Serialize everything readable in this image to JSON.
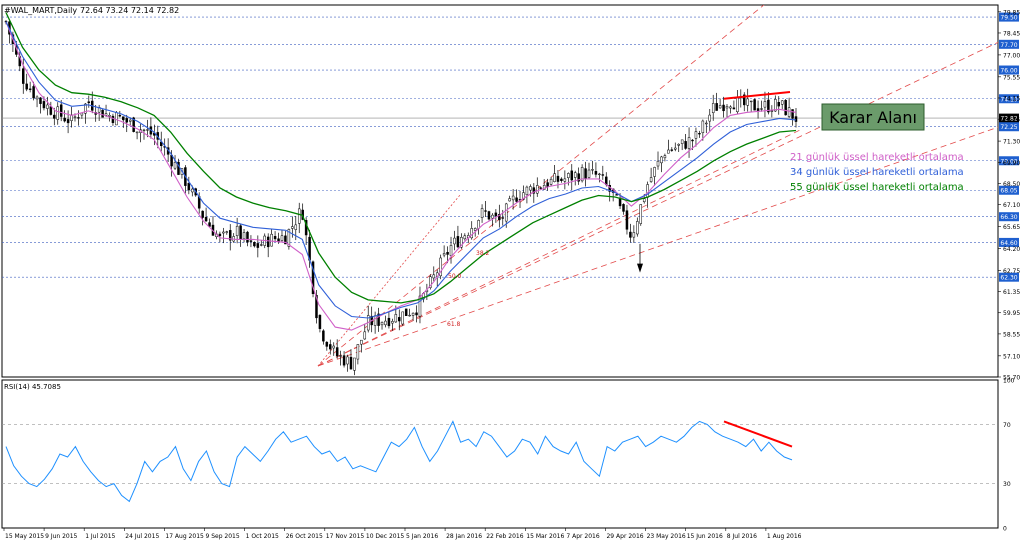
{
  "header": {
    "title": "#WAL_MART,Daily",
    "ohlc": "72.64 73.24 72.14 72.82"
  },
  "rsi_label": "RSI(14) 45.7085",
  "annotation_box": "Karar Alanı",
  "legend": [
    {
      "text": "21 günlük üssel hareketli ortalama",
      "color": "#d060c8"
    },
    {
      "text": "34 günlük üssel hareketli ortalama",
      "color": "#3060d8"
    },
    {
      "text": "55 günlük üssel hareketli ortalama",
      "color": "#008000"
    }
  ],
  "fib_labels": [
    "38.2",
    "50.0",
    "61.8"
  ],
  "chart_data": [
    {
      "type": "candlestick",
      "price_axis_ticks": [
        "79.85",
        "78.45",
        "77.00",
        "75.55",
        "74.15",
        "72.75",
        "71.30",
        "69.90",
        "68.50",
        "67.10",
        "65.65",
        "64.20",
        "62.75",
        "61.35",
        "59.95",
        "58.55",
        "57.10",
        "55.70"
      ],
      "highlighted_levels": [
        "79.50",
        "77.70",
        "76.00",
        "74.10",
        "72.82",
        "72.25",
        "70.00",
        "68.05",
        "66.30",
        "64.60",
        "62.30"
      ],
      "current_price": "72.82",
      "ylim": [
        55.7,
        80.3
      ],
      "date_axis_labels": [
        "15 May 2015",
        "9 Jun 2015",
        "1 Jul 2015",
        "24 Jul 2015",
        "17 Aug 2015",
        "9 Sep 2015",
        "1 Oct 2015",
        "26 Oct 2015",
        "17 Nov 2015",
        "10 Dec 2015",
        "5 Jan 2016",
        "28 Jan 2016",
        "22 Feb 2016",
        "15 Mar 2016",
        "7 Apr 2016",
        "29 Apr 2016",
        "23 May 2016",
        "15 Jun 2016",
        "8 Jul 2016",
        "1 Aug 2016"
      ],
      "close_series": [
        79.2,
        75.5,
        74.0,
        73.2,
        72.6,
        73.9,
        73.1,
        72.8,
        72.2,
        71.7,
        70.2,
        68.5,
        66.3,
        64.8,
        65.3,
        64.2,
        64.8,
        65.0,
        66.8,
        59.0,
        57.2,
        56.6,
        59.3,
        59.5,
        59.8,
        60.3,
        62.3,
        64.3,
        65.3,
        66.6,
        66.0,
        67.7,
        68.2,
        68.6,
        68.8,
        69.2,
        69.0,
        67.5,
        65.0,
        68.5,
        70.6,
        71.0,
        71.6,
        73.5,
        74.0,
        73.6,
        73.6,
        73.7,
        72.82
      ],
      "series": [
        {
          "name": "21 günlük üssel hareketli ortalama",
          "values": [
            79.2,
            76.4,
            74.5,
            73.3,
            73.0,
            73.3,
            73.0,
            72.6,
            72.1,
            71.4,
            69.5,
            67.6,
            66.0,
            64.9,
            64.8,
            64.8,
            64.7,
            64.6,
            63.8,
            60.5,
            59.0,
            58.8,
            59.3,
            59.9,
            60.4,
            60.8,
            62.0,
            63.6,
            64.8,
            65.8,
            66.4,
            67.2,
            67.9,
            68.3,
            68.5,
            68.8,
            68.8,
            68.0,
            67.0,
            67.9,
            69.1,
            70.2,
            71.1,
            72.2,
            73.0,
            73.2,
            73.3,
            73.4,
            73.2
          ]
        },
        {
          "name": "34 günlük üssel hareketli ortalama",
          "values": [
            79.2,
            76.9,
            75.2,
            74.0,
            73.6,
            73.7,
            73.4,
            73.1,
            72.6,
            71.9,
            70.5,
            68.8,
            67.2,
            66.2,
            65.9,
            65.6,
            65.5,
            65.4,
            64.8,
            61.8,
            60.4,
            59.7,
            59.6,
            59.9,
            60.3,
            60.6,
            61.4,
            62.7,
            63.8,
            64.9,
            65.5,
            66.3,
            67.0,
            67.5,
            67.8,
            68.2,
            68.3,
            67.9,
            67.3,
            67.8,
            68.6,
            69.4,
            70.2,
            71.1,
            71.9,
            72.4,
            72.6,
            72.8,
            72.7
          ]
        },
        {
          "name": "55 günlük üssel hareketli ortalama",
          "values": [
            79.8,
            77.5,
            76.0,
            75.0,
            74.5,
            74.4,
            74.2,
            73.9,
            73.5,
            73.0,
            71.9,
            70.5,
            69.3,
            68.2,
            67.6,
            67.2,
            66.9,
            66.7,
            66.4,
            63.9,
            62.3,
            61.3,
            60.8,
            60.7,
            60.6,
            60.8,
            61.2,
            62.0,
            62.9,
            63.8,
            64.5,
            65.2,
            65.9,
            66.4,
            66.9,
            67.4,
            67.7,
            67.6,
            67.3,
            67.6,
            68.1,
            68.7,
            69.3,
            70.0,
            70.6,
            71.1,
            71.5,
            71.9,
            72.0
          ]
        }
      ]
    },
    {
      "type": "line",
      "name": "RSI(14)",
      "ticks": [
        "100",
        "70",
        "30",
        "0"
      ],
      "levels": [
        70,
        30
      ],
      "ylim": [
        0,
        100
      ],
      "values": [
        55,
        42,
        35,
        30,
        28,
        33,
        40,
        50,
        48,
        55,
        45,
        38,
        32,
        28,
        30,
        22,
        18,
        30,
        45,
        38,
        45,
        48,
        55,
        40,
        32,
        45,
        52,
        38,
        30,
        28,
        48,
        55,
        50,
        45,
        52,
        60,
        65,
        58,
        60,
        62,
        55,
        50,
        52,
        45,
        48,
        40,
        42,
        40,
        38,
        48,
        58,
        55,
        60,
        68,
        55,
        45,
        52,
        62,
        72,
        58,
        60,
        55,
        65,
        62,
        55,
        48,
        52,
        60,
        58,
        50,
        62,
        55,
        52,
        50,
        58,
        45,
        40,
        35,
        55,
        52,
        58,
        60,
        62,
        55,
        58,
        62,
        60,
        58,
        62,
        68,
        72,
        70,
        65,
        62,
        60,
        58,
        55,
        60,
        52,
        58,
        52,
        48,
        46
      ]
    }
  ]
}
